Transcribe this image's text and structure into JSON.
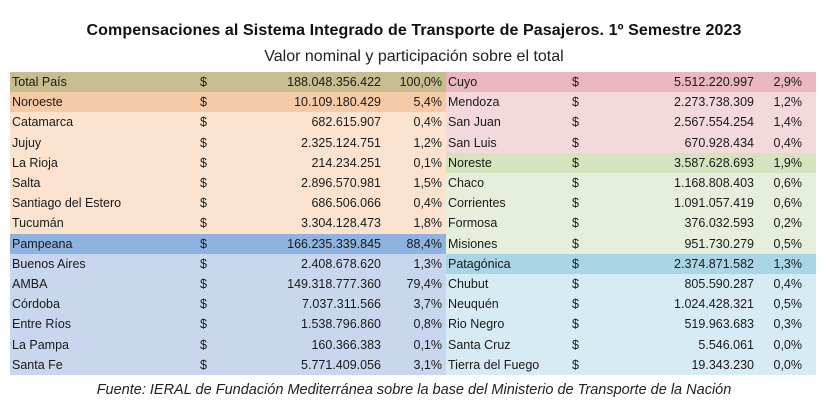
{
  "title": "Compensaciones al Sistema Integrado de Transporte de Pasajeros. 1º Semestre 2023",
  "subtitle": "Valor nominal y participación sobre el total",
  "source": "Fuente: IERAL de Fundación Mediterránea sobre la base del Ministerio de Transporte de la Nación",
  "colors": {
    "total": "#c8bd8f",
    "noroeste_header": "#f6c9a7",
    "noroeste_row": "#fce3d0",
    "pampeana_header": "#8fb3e0",
    "pampeana_row": "#c8d6ee",
    "cuyo_header": "#e9b7bd",
    "cuyo_row": "#f3d9dc",
    "noreste_header": "#d3e4be",
    "noreste_row": "#e6efdb",
    "patagonica_header": "#a9d6e5",
    "patagonica_row": "#d6ebf3"
  },
  "left_rows": [
    {
      "name": "Total País",
      "cur": "$",
      "value": "188.048.356.422",
      "pct": "100,0%",
      "kind": "total"
    },
    {
      "name": "Noroeste",
      "cur": "$",
      "value": "10.109.180.429",
      "pct": "5,4%",
      "kind": "noroeste_header"
    },
    {
      "name": "Catamarca",
      "cur": "$",
      "value": "682.615.907",
      "pct": "0,4%",
      "kind": "noroeste_row"
    },
    {
      "name": "Jujuy",
      "cur": "$",
      "value": "2.325.124.751",
      "pct": "1,2%",
      "kind": "noroeste_row"
    },
    {
      "name": "La Rioja",
      "cur": "$",
      "value": "214.234.251",
      "pct": "0,1%",
      "kind": "noroeste_row"
    },
    {
      "name": "Salta",
      "cur": "$",
      "value": "2.896.570.981",
      "pct": "1,5%",
      "kind": "noroeste_row"
    },
    {
      "name": "Santiago del Estero",
      "cur": "$",
      "value": "686.506.066",
      "pct": "0,4%",
      "kind": "noroeste_row"
    },
    {
      "name": "Tucumán",
      "cur": "$",
      "value": "3.304.128.473",
      "pct": "1,8%",
      "kind": "noroeste_row"
    },
    {
      "name": "Pampeana",
      "cur": "$",
      "value": "166.235.339.845",
      "pct": "88,4%",
      "kind": "pampeana_header"
    },
    {
      "name": "Buenos Aires",
      "cur": "$",
      "value": "2.408.678.620",
      "pct": "1,3%",
      "kind": "pampeana_row"
    },
    {
      "name": "AMBA",
      "cur": "$",
      "value": "149.318.777.360",
      "pct": "79,4%",
      "kind": "pampeana_row"
    },
    {
      "name": "Córdoba",
      "cur": "$",
      "value": "7.037.311.566",
      "pct": "3,7%",
      "kind": "pampeana_row"
    },
    {
      "name": "Entre Ríos",
      "cur": "$",
      "value": "1.538.796.860",
      "pct": "0,8%",
      "kind": "pampeana_row"
    },
    {
      "name": "La Pampa",
      "cur": "$",
      "value": "160.366.383",
      "pct": "0,1%",
      "kind": "pampeana_row"
    },
    {
      "name": "Santa Fe",
      "cur": "$",
      "value": "5.771.409.056",
      "pct": "3,1%",
      "kind": "pampeana_row"
    }
  ],
  "right_rows": [
    {
      "name": "Cuyo",
      "cur": "$",
      "value": "5.512.220.997",
      "pct": "2,9%",
      "kind": "cuyo_header"
    },
    {
      "name": "Mendoza",
      "cur": "$",
      "value": "2.273.738.309",
      "pct": "1,2%",
      "kind": "cuyo_row"
    },
    {
      "name": "San Juan",
      "cur": "$",
      "value": "2.567.554.254",
      "pct": "1,4%",
      "kind": "cuyo_row"
    },
    {
      "name": "San Luis",
      "cur": "$",
      "value": "670.928.434",
      "pct": "0,4%",
      "kind": "cuyo_row"
    },
    {
      "name": "Noreste",
      "cur": "$",
      "value": "3.587.628.693",
      "pct": "1,9%",
      "kind": "noreste_header"
    },
    {
      "name": "Chaco",
      "cur": "$",
      "value": "1.168.808.403",
      "pct": "0,6%",
      "kind": "noreste_row"
    },
    {
      "name": "Corrientes",
      "cur": "$",
      "value": "1.091.057.419",
      "pct": "0,6%",
      "kind": "noreste_row"
    },
    {
      "name": "Formosa",
      "cur": "$",
      "value": "376.032.593",
      "pct": "0,2%",
      "kind": "noreste_row"
    },
    {
      "name": "Misiones",
      "cur": "$",
      "value": "951.730.279",
      "pct": "0,5%",
      "kind": "noreste_row"
    },
    {
      "name": "Patagónica",
      "cur": "$",
      "value": "2.374.871.582",
      "pct": "1,3%",
      "kind": "patagonica_header"
    },
    {
      "name": "Chubut",
      "cur": "$",
      "value": "805.590.287",
      "pct": "0,4%",
      "kind": "patagonica_row"
    },
    {
      "name": "Neuquén",
      "cur": "$",
      "value": "1.024.428.321",
      "pct": "0,5%",
      "kind": "patagonica_row"
    },
    {
      "name": "Rio Negro",
      "cur": "$",
      "value": "519.963.683",
      "pct": "0,3%",
      "kind": "patagonica_row"
    },
    {
      "name": "Santa Cruz",
      "cur": "$",
      "value": "5.546.061",
      "pct": "0,0%",
      "kind": "patagonica_row"
    },
    {
      "name": "Tierra del Fuego",
      "cur": "$",
      "value": "19.343.230",
      "pct": "0,0%",
      "kind": "patagonica_row"
    }
  ]
}
